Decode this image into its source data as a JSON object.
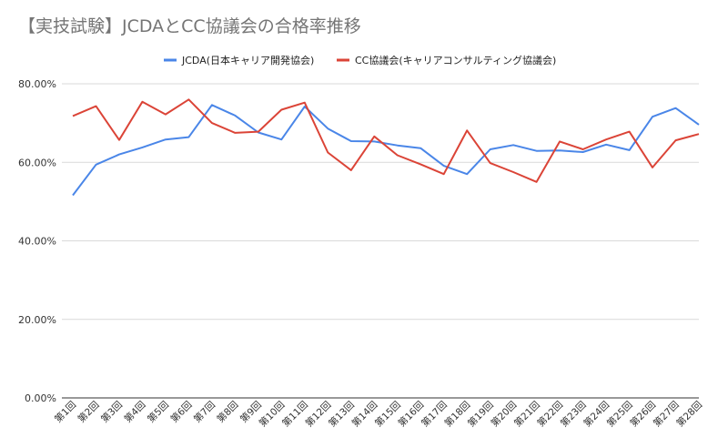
{
  "chart_data": {
    "type": "line",
    "title": "【実技試験】JCDAとCC協議会の合格率推移",
    "xlabel": "",
    "ylabel": "",
    "categories": [
      "第1回",
      "第2回",
      "第3回",
      "第4回",
      "第5回",
      "第6回",
      "第7回",
      "第8回",
      "第9回",
      "第10回",
      "第11回",
      "第12回",
      "第13回",
      "第14回",
      "第15回",
      "第16回",
      "第17回",
      "第18回",
      "第19回",
      "第20回",
      "第21回",
      "第22回",
      "第23回",
      "第24回",
      "第25回",
      "第26回",
      "第27回",
      "第28回"
    ],
    "ylim": [
      0,
      80
    ],
    "yticks": [
      "0.00%",
      "20.00%",
      "40.00%",
      "60.00%",
      "80.00%"
    ],
    "grid": true,
    "legend_position": "top",
    "series": [
      {
        "name": "JCDA(日本キャリア開発協会)",
        "color": "#4a86e8",
        "values": [
          51.6,
          59.4,
          62.0,
          63.8,
          65.8,
          66.4,
          74.6,
          71.9,
          67.6,
          65.8,
          74.2,
          68.6,
          65.4,
          65.3,
          64.3,
          63.6,
          59.1,
          57.0,
          63.3,
          64.4,
          62.9,
          63.0,
          62.6,
          64.5,
          63.1,
          71.6,
          73.8,
          69.6
        ]
      },
      {
        "name": "CC協議会(キャリアコンサルティング協議会)",
        "color": "#db4437",
        "values": [
          71.8,
          74.3,
          65.7,
          75.4,
          72.2,
          76.0,
          70.0,
          67.5,
          67.8,
          73.4,
          75.2,
          62.5,
          58.0,
          66.6,
          61.8,
          59.5,
          57.0,
          68.1,
          59.8,
          57.5,
          55.0,
          65.3,
          63.3,
          65.8,
          67.8,
          58.7,
          65.6,
          67.2
        ]
      }
    ]
  }
}
